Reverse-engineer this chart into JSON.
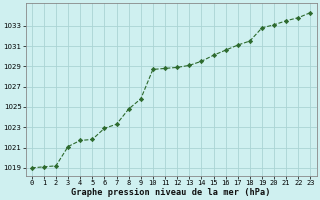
{
  "x": [
    0,
    1,
    2,
    3,
    4,
    5,
    6,
    7,
    8,
    9,
    10,
    11,
    12,
    13,
    14,
    15,
    16,
    17,
    18,
    19,
    20,
    21,
    22,
    23
  ],
  "y": [
    1019.0,
    1019.1,
    1019.2,
    1021.1,
    1021.7,
    1021.8,
    1022.9,
    1023.3,
    1024.8,
    1025.8,
    1028.7,
    1028.8,
    1028.9,
    1029.1,
    1029.5,
    1030.1,
    1030.6,
    1031.1,
    1031.5,
    1032.8,
    1033.1,
    1033.5,
    1033.8,
    1034.3
  ],
  "line_color": "#2d6a2d",
  "marker": "D",
  "marker_size": 2.2,
  "bg_color": "#cff0f0",
  "grid_color": "#aad4d4",
  "ylabel_ticks": [
    1019,
    1021,
    1023,
    1025,
    1027,
    1029,
    1031,
    1033
  ],
  "xlabel_label": "Graphe pression niveau de la mer (hPa)",
  "ylim": [
    1018.2,
    1035.2
  ],
  "xlim": [
    -0.5,
    23.5
  ],
  "tick_fontsize": 5.0,
  "xlabel_fontsize": 6.2,
  "linewidth": 0.8
}
